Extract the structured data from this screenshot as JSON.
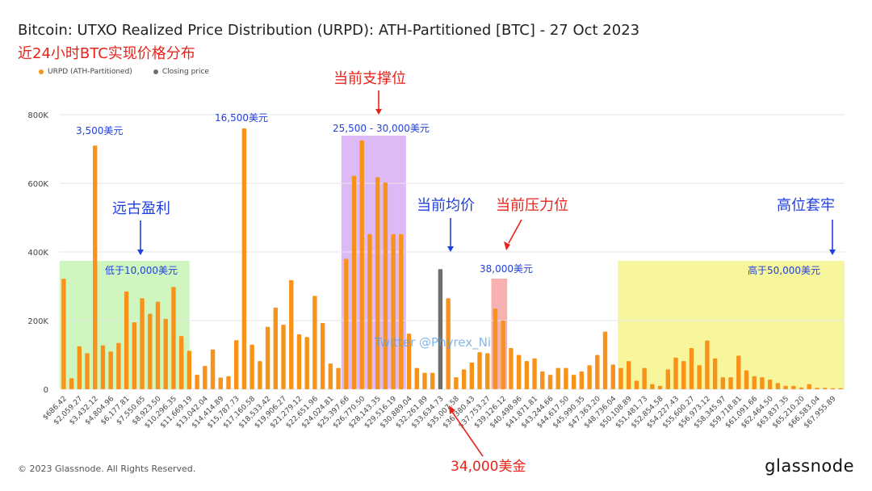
{
  "header": {
    "title": "Bitcoin: UTXO Realized Price Distribution (URPD): ATH-Partitioned [BTC] - 27 Oct 2023",
    "subtitle": "近24小时BTC实现价格分布"
  },
  "legend": [
    {
      "label": "URPD (ATH-Partitioned)",
      "color": "#f7931a"
    },
    {
      "label": "Closing price",
      "color": "#6e6e6e"
    }
  ],
  "footer": {
    "copyright": "© 2023 Glassnode. All Rights Reserved.",
    "brand": "glassnode"
  },
  "colors": {
    "bar": "#f7931a",
    "closing": "#6e6e6e",
    "green_zone": "#c7f5b4",
    "purple_zone": "#d9b3f5",
    "pink_zone": "#f7a8a8",
    "yellow_zone": "#f7f58c",
    "blue_text": "#1f3fe0",
    "red_text": "#e8231c"
  },
  "chart_data": {
    "type": "bar",
    "ylim": [
      0,
      850000
    ],
    "yticks": [
      0,
      200000,
      400000,
      600000,
      800000
    ],
    "ytick_labels": [
      "0",
      "200K",
      "400K",
      "600K",
      "800K"
    ],
    "xtick_labels": [
      "$686.42",
      "$2,059.27",
      "$3,432.12",
      "$4,804.96",
      "$6,177.81",
      "$7,550.65",
      "$8,923.50",
      "$10,296.35",
      "$11,669.19",
      "$13,042.04",
      "$14,414.89",
      "$15,787.73",
      "$17,160.58",
      "$18,533.42",
      "$19,906.27",
      "$21,279.12",
      "$22,651.96",
      "$24,024.81",
      "$25,397.66",
      "$26,770.50",
      "$28,143.35",
      "$29,516.19",
      "$30,889.04",
      "$32,261.89",
      "$33,634.73",
      "$35,007.58",
      "$36,380.43",
      "$37,753.27",
      "$39,126.12",
      "$40,498.96",
      "$41,871.81",
      "$43,244.66",
      "$44,617.50",
      "$45,990.35",
      "$47,363.20",
      "$48,736.04",
      "$50,108.89",
      "$51,481.73",
      "$52,854.58",
      "$54,227.43",
      "$55,600.27",
      "$56,973.12",
      "$58,345.97",
      "$59,718.81",
      "$61,091.66",
      "$62,464.50",
      "$63,837.35",
      "$65,210.20",
      "$66,583.04",
      "$67,955.89"
    ],
    "closing_index": 48,
    "values": [
      322000,
      32000,
      125000,
      105000,
      710000,
      128000,
      110000,
      135000,
      285000,
      195000,
      265000,
      220000,
      255000,
      205000,
      298000,
      155000,
      112000,
      42000,
      68000,
      116000,
      34000,
      38000,
      143000,
      760000,
      130000,
      82000,
      182000,
      238000,
      188000,
      318000,
      160000,
      152000,
      272000,
      193000,
      75000,
      62000,
      380000,
      622000,
      725000,
      452000,
      618000,
      602000,
      452000,
      452000,
      162000,
      62000,
      48000,
      48000,
      350000,
      265000,
      35000,
      58000,
      78000,
      108000,
      105000,
      235000,
      200000,
      120000,
      100000,
      82000,
      90000,
      52000,
      42000,
      62000,
      62000,
      42000,
      52000,
      70000,
      100000,
      168000,
      72000,
      62000,
      82000,
      25000,
      62000,
      15000,
      10000,
      58000,
      92000,
      82000,
      120000,
      70000,
      142000,
      90000,
      35000,
      35000,
      98000,
      55000,
      38000,
      35000,
      28000,
      18000,
      10000,
      10000,
      5000,
      15000,
      4000,
      4000,
      3000,
      3000
    ],
    "annotations": {
      "zone_green_label": "低于10,000美元",
      "zone_purple_label": "25,500 - 30,000美元",
      "zone_pink_label": "38,000美元",
      "zone_yellow_label": "高于50,000美元",
      "peak_3500": "3,500美元",
      "peak_16500": "16,500美元",
      "ancient_profit": "远古盈利",
      "support": "当前支撑位",
      "avg_price": "当前均价",
      "resistance": "当前压力位",
      "trapped": "高位套牢",
      "price_34000": "34,000美金",
      "watermark": "Twitter @Phyrex_Ni"
    }
  }
}
